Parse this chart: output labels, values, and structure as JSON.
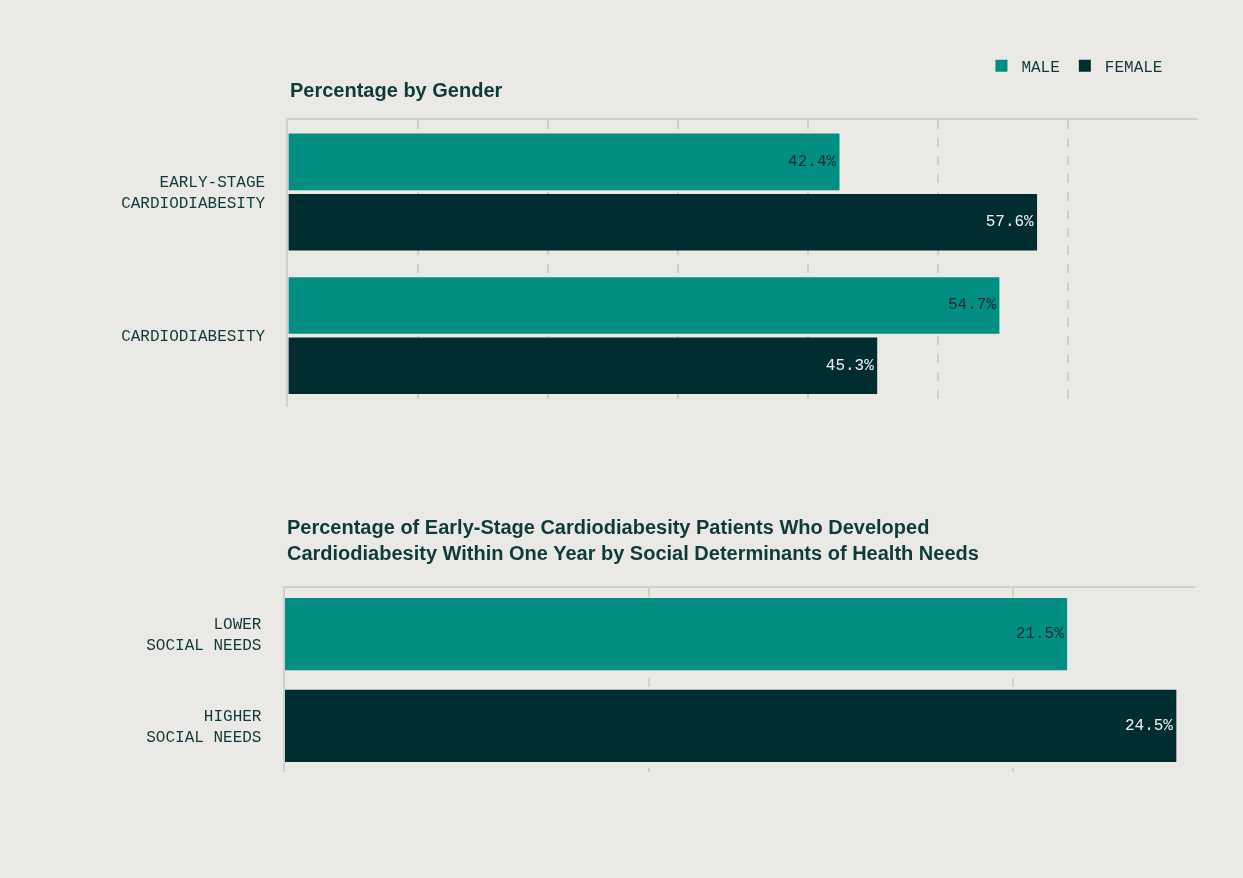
{
  "chart_data": [
    {
      "type": "bar",
      "orientation": "horizontal",
      "title": "Percentage by Gender",
      "categories": [
        "EARLY-STAGE CARDIODIABESITY",
        "CARDIODIABESITY"
      ],
      "series": [
        {
          "name": "MALE",
          "color": "#008f82",
          "values": [
            42.4,
            54.7
          ],
          "value_labels": [
            "42.4%",
            "54.7%"
          ]
        },
        {
          "name": "FEMALE",
          "color": "#002e30",
          "values": [
            57.6,
            45.3
          ],
          "value_labels": [
            "57.6%",
            "45.3%"
          ]
        }
      ],
      "xlim": [
        0,
        70
      ],
      "xticks": [
        {
          "value": 10,
          "label": null
        },
        {
          "value": 20,
          "label": null
        },
        {
          "value": 30,
          "label": null
        },
        {
          "value": 40,
          "label": null
        },
        {
          "value": 50,
          "label": null
        },
        {
          "value": 60,
          "label": null
        }
      ],
      "grid": "x",
      "legend": "top right",
      "tick_labels": "y"
    },
    {
      "type": "bar",
      "orientation": "horizontal",
      "title": "Percentage of Early-Stage Cardiodiabesity Patients Who Developed Cardiodiabesity Within One Year by Social Determinants of Health Needs",
      "categories": [
        "LOWER SOCIAL NEEDS",
        "HIGHER SOCIAL NEEDS"
      ],
      "values": [
        21.5,
        24.5
      ],
      "colors": [
        "#008f82",
        "#002e30"
      ],
      "value_labels": [
        "21.5%",
        "24.5%"
      ],
      "xlim": [
        0,
        25
      ],
      "xticks": [
        {
          "value": 10,
          "label": null
        },
        {
          "value": 20,
          "label": null
        }
      ],
      "grid": "x",
      "tick_labels": "y"
    }
  ]
}
